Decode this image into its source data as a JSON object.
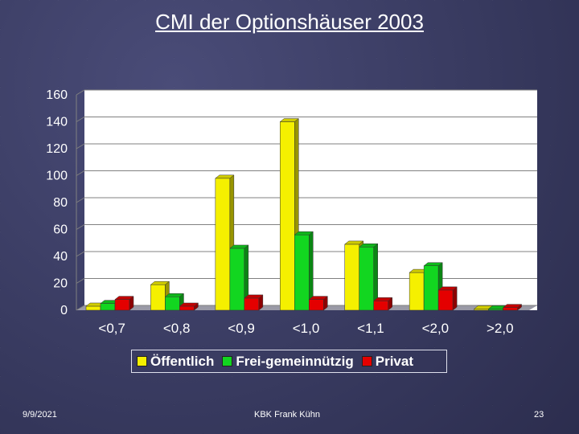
{
  "title": "CMI der Optionshäuser 2003",
  "footer": {
    "date": "9/9/2021",
    "author": "KBK Frank Kühn",
    "page": "23"
  },
  "colors": {
    "yellow": "#f5f000",
    "green": "#12d620",
    "red": "#e40000"
  },
  "chart_data": {
    "type": "bar",
    "categories": [
      "<0,7",
      "<0,8",
      "<0,9",
      "<1,0",
      "<1,1",
      "<2,0",
      ">2,0"
    ],
    "series": [
      {
        "name": "Öffentlich",
        "values": [
          3,
          19,
          98,
          140,
          49,
          28,
          1
        ],
        "color": "#f5f000"
      },
      {
        "name": "Frei-gemeinnützig",
        "values": [
          5,
          10,
          46,
          56,
          47,
          33,
          1
        ],
        "color": "#12d620"
      },
      {
        "name": "Privat",
        "values": [
          8,
          3,
          9,
          8,
          7,
          15,
          2
        ],
        "color": "#e40000"
      }
    ],
    "yticks": [
      "0",
      "20",
      "40",
      "60",
      "80",
      "100",
      "120",
      "140",
      "160"
    ],
    "ylim": [
      0,
      160
    ],
    "grid": true,
    "legend": "bottom"
  }
}
